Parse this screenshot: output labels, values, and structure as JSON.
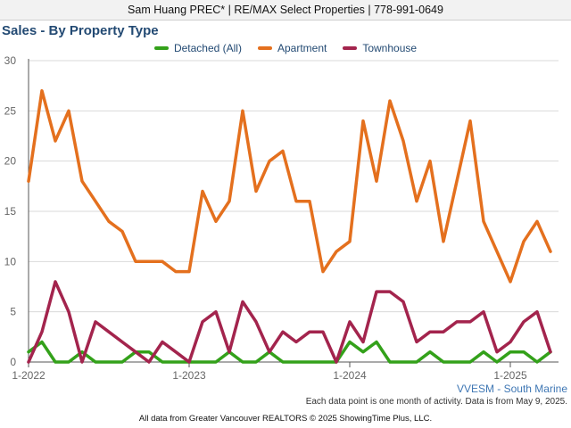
{
  "header": {
    "agent": "Sam Huang PREC* | RE/MAX Select Properties | 778-991-0649"
  },
  "watermark": "VVESM - South Marine",
  "note": "Each data point is one month of activity. Data is from May 9, 2025.",
  "footer": "All data from Greater Vancouver REALTORS © 2025 ShowingTime Plus, LLC.",
  "chart_data": {
    "type": "line",
    "title": "Sales - By Property Type",
    "xlabel": "",
    "ylabel": "",
    "ylim": [
      0,
      30
    ],
    "yticks": [
      "0",
      "5",
      "10",
      "15",
      "20",
      "25",
      "30"
    ],
    "xticks": [
      {
        "label": "1-2022",
        "month_index": 0
      },
      {
        "label": "1-2023",
        "month_index": 12
      },
      {
        "label": "1-2024",
        "month_index": 24
      },
      {
        "label": "1-2025",
        "month_index": 36
      }
    ],
    "grid": "horizontal",
    "legend": "top-center",
    "x": [
      "2022-01",
      "2022-02",
      "2022-03",
      "2022-04",
      "2022-05",
      "2022-06",
      "2022-07",
      "2022-08",
      "2022-09",
      "2022-10",
      "2022-11",
      "2022-12",
      "2023-01",
      "2023-02",
      "2023-03",
      "2023-04",
      "2023-05",
      "2023-06",
      "2023-07",
      "2023-08",
      "2023-09",
      "2023-10",
      "2023-11",
      "2023-12",
      "2024-01",
      "2024-02",
      "2024-03",
      "2024-04",
      "2024-05",
      "2024-06",
      "2024-07",
      "2024-08",
      "2024-09",
      "2024-10",
      "2024-11",
      "2024-12",
      "2025-01",
      "2025-02",
      "2025-03",
      "2025-04"
    ],
    "series": [
      {
        "name": "Detached (All)",
        "color": "#33a11a",
        "values": [
          1,
          2,
          0,
          0,
          1,
          0,
          0,
          0,
          1,
          1,
          0,
          0,
          0,
          0,
          0,
          1,
          0,
          0,
          1,
          0,
          0,
          0,
          0,
          0,
          2,
          1,
          2,
          0,
          0,
          0,
          1,
          0,
          0,
          0,
          1,
          0,
          1,
          1,
          0,
          1
        ]
      },
      {
        "name": "Apartment",
        "color": "#e4701e",
        "values": [
          18,
          27,
          22,
          25,
          18,
          16,
          14,
          13,
          10,
          10,
          10,
          9,
          9,
          17,
          14,
          16,
          25,
          17,
          20,
          21,
          16,
          16,
          9,
          11,
          12,
          24,
          18,
          26,
          22,
          16,
          20,
          12,
          18,
          24,
          14,
          11,
          8,
          12,
          14,
          11
        ]
      },
      {
        "name": "Townhouse",
        "color": "#a3244d",
        "values": [
          0,
          3,
          8,
          5,
          0,
          4,
          3,
          2,
          1,
          0,
          2,
          1,
          0,
          4,
          5,
          1,
          6,
          4,
          1,
          3,
          2,
          3,
          3,
          0,
          4,
          2,
          7,
          7,
          6,
          2,
          3,
          3,
          4,
          4,
          5,
          1,
          2,
          4,
          5,
          1
        ]
      }
    ]
  }
}
